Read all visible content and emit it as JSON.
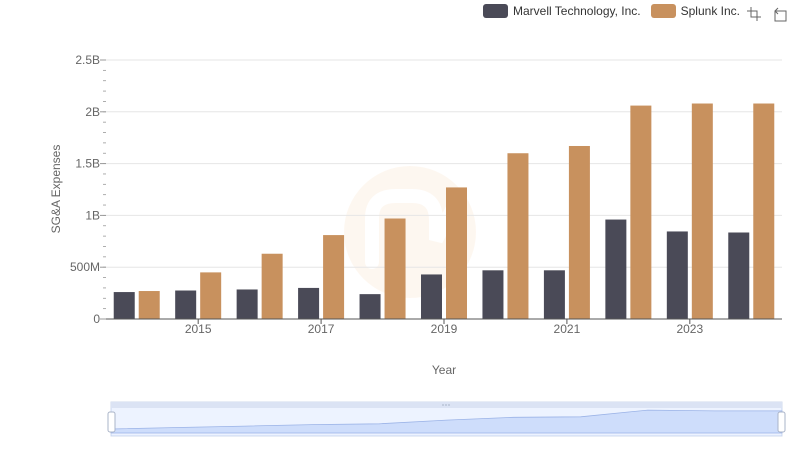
{
  "legend": {
    "items": [
      {
        "label": "Marvell Technology, Inc.",
        "color": "#4a4a57"
      },
      {
        "label": "Splunk Inc.",
        "color": "#c8915e"
      }
    ]
  },
  "toolbox": {
    "zoom_icon": "zoom-select-icon",
    "restore_icon": "restore-icon"
  },
  "chart_data": {
    "type": "bar",
    "xlabel": "Year",
    "ylabel": "SG&A Expenses",
    "ylim": [
      0,
      2500000000
    ],
    "y_ticks": [
      {
        "value": 0,
        "label": "0"
      },
      {
        "value": 500000000,
        "label": "500M"
      },
      {
        "value": 1000000000,
        "label": "1B"
      },
      {
        "value": 1500000000,
        "label": "1.5B"
      },
      {
        "value": 2000000000,
        "label": "2B"
      },
      {
        "value": 2500000000,
        "label": "2.5B"
      }
    ],
    "categories": [
      "2014",
      "2015",
      "2016",
      "2017",
      "2018",
      "2019",
      "2020",
      "2021",
      "2022",
      "2023",
      "2024"
    ],
    "x_tick_labels": [
      "2015",
      "2017",
      "2019",
      "2021",
      "2023"
    ],
    "series": [
      {
        "name": "Marvell Technology, Inc.",
        "color": "#4a4a57",
        "values": [
          260000000,
          275000000,
          285000000,
          300000000,
          240000000,
          430000000,
          470000000,
          470000000,
          960000000,
          845000000,
          835000000
        ]
      },
      {
        "name": "Splunk Inc.",
        "color": "#c8915e",
        "values": [
          270000000,
          450000000,
          630000000,
          810000000,
          970000000,
          1270000000,
          1600000000,
          1670000000,
          2060000000,
          2080000000,
          2080000000
        ]
      }
    ],
    "grid": true,
    "legend_position": "top-right",
    "data_zoom": {
      "range": [
        0,
        100
      ]
    }
  }
}
